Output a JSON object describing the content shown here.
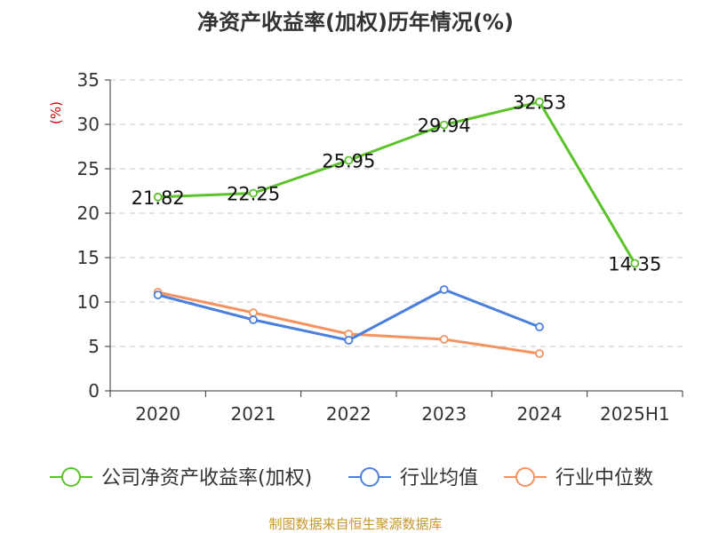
{
  "chart_data": {
    "type": "line",
    "title": "净资产收益率(加权)历年情况(%)",
    "ylabel": "(%)",
    "xlabel": "",
    "categories": [
      "2020",
      "2021",
      "2022",
      "2023",
      "2024",
      "2025H1"
    ],
    "ylim": [
      0,
      35
    ],
    "yticks": [
      0,
      5,
      10,
      15,
      20,
      25,
      30,
      35
    ],
    "grid": true,
    "legend_position": "bottom",
    "series": [
      {
        "name": "公司净资产收益率(加权)",
        "color": "#5cc22a",
        "values": [
          21.82,
          22.25,
          25.95,
          29.94,
          32.53,
          14.35
        ],
        "data_labels": [
          "21.82",
          "22.25",
          "25.95",
          "29.94",
          "32.53",
          "14.35"
        ]
      },
      {
        "name": "行业均值",
        "color": "#4a7fdd",
        "values": [
          10.8,
          8.0,
          5.7,
          11.4,
          7.2,
          null
        ]
      },
      {
        "name": "行业中位数",
        "color": "#f59262",
        "values": [
          11.1,
          8.8,
          6.4,
          5.8,
          4.2,
          null
        ]
      }
    ],
    "source": "制图数据来自恒生聚源数据库"
  }
}
